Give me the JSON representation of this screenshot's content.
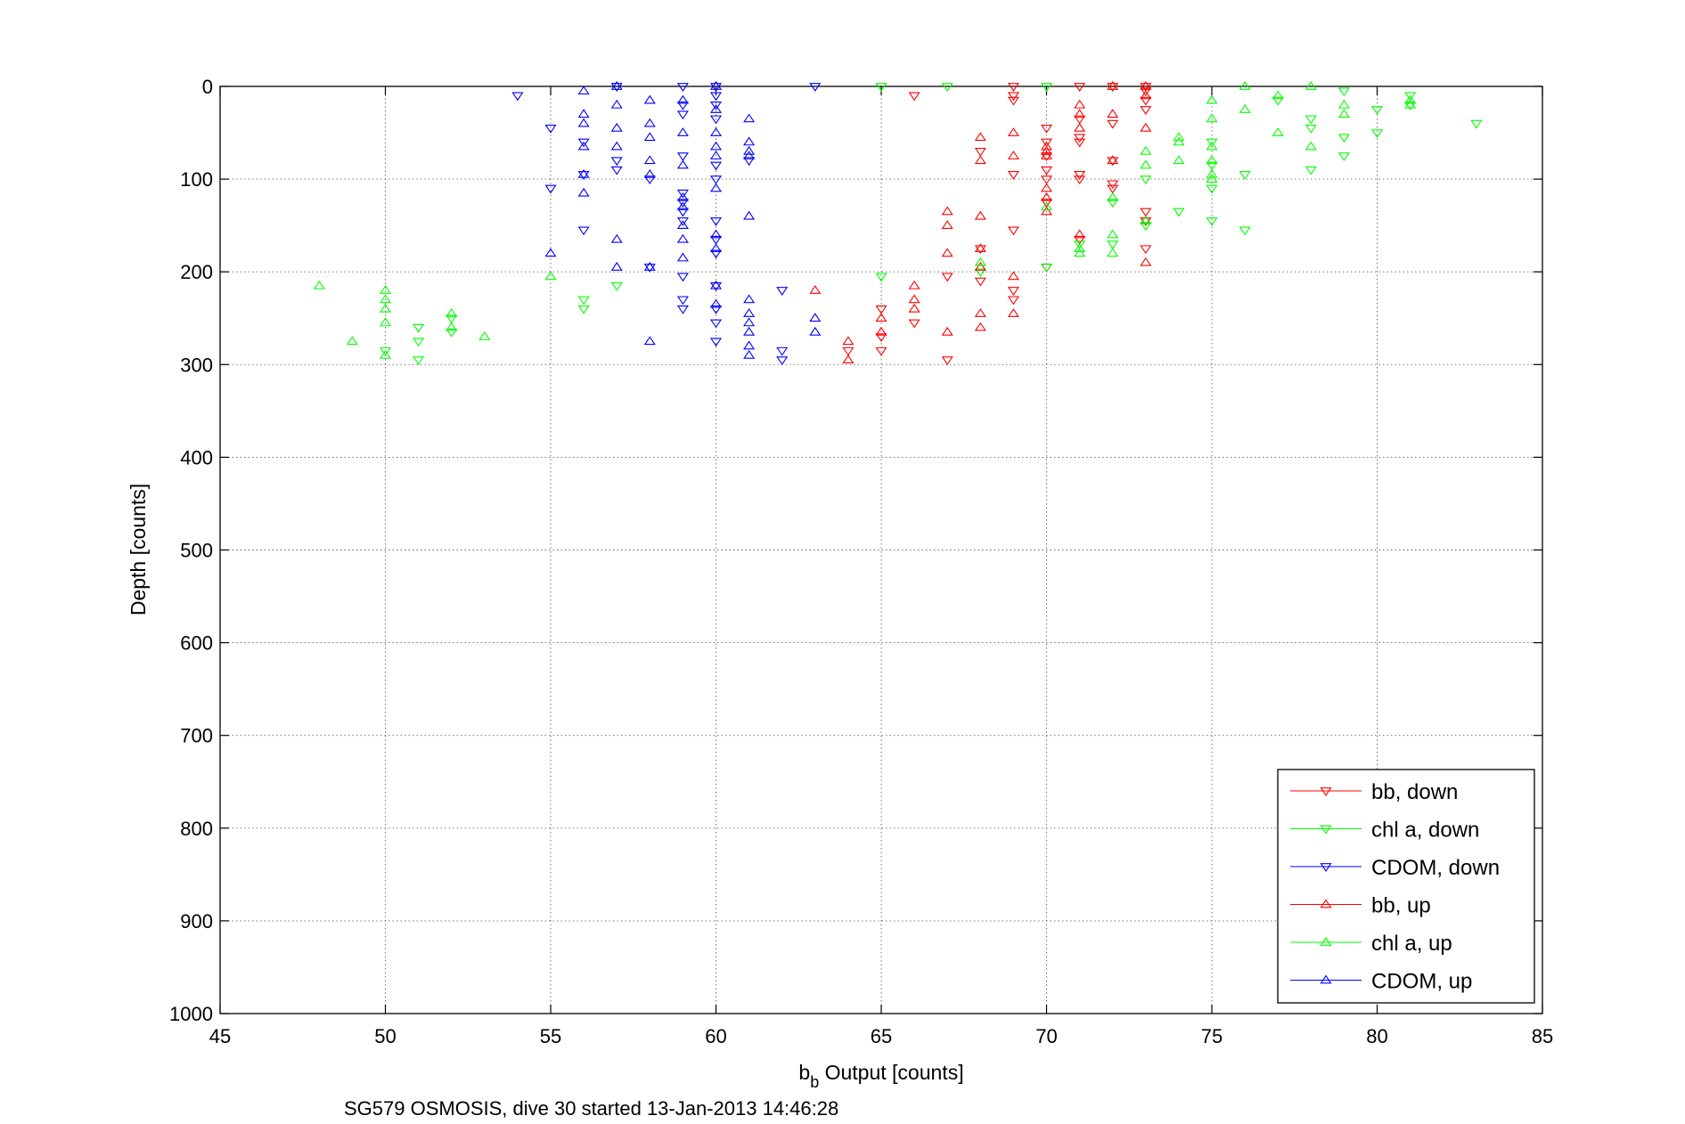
{
  "chart_data": {
    "type": "scatter",
    "xlabel_main": "b",
    "xlabel_sub": "b",
    "xlabel_rest": " Output [counts]",
    "ylabel": "Depth [counts]",
    "caption": "SG579 OSMOSIS, dive 30 started 13-Jan-2013 14:46:28",
    "xlim": [
      45,
      85
    ],
    "ylim": [
      0,
      1000
    ],
    "y_reversed": true,
    "grid": true,
    "legend_position": "bottom-right",
    "xticks": [
      45,
      50,
      55,
      60,
      65,
      70,
      75,
      80,
      85
    ],
    "yticks": [
      0,
      100,
      200,
      300,
      400,
      500,
      600,
      700,
      800,
      900,
      1000
    ],
    "series": [
      {
        "name": "bb, down",
        "color": "#ff0000",
        "marker": "triangle-down",
        "points": [
          [
            66,
            10
          ],
          [
            69,
            0
          ],
          [
            69,
            10
          ],
          [
            69,
            15
          ],
          [
            70,
            45
          ],
          [
            70,
            60
          ],
          [
            70,
            75
          ],
          [
            70,
            90
          ],
          [
            70,
            100
          ],
          [
            70,
            125
          ],
          [
            70,
            195
          ],
          [
            71,
            0
          ],
          [
            71,
            35
          ],
          [
            71,
            55
          ],
          [
            71,
            60
          ],
          [
            71,
            95
          ],
          [
            71,
            100
          ],
          [
            71,
            165
          ],
          [
            72,
            0
          ],
          [
            72,
            40
          ],
          [
            72,
            80
          ],
          [
            72,
            105
          ],
          [
            72,
            110
          ],
          [
            73,
            0
          ],
          [
            73,
            5
          ],
          [
            73,
            15
          ],
          [
            73,
            25
          ],
          [
            73,
            135
          ],
          [
            73,
            145
          ],
          [
            73,
            175
          ],
          [
            69,
            155
          ],
          [
            69,
            220
          ],
          [
            69,
            230
          ],
          [
            68,
            175
          ],
          [
            68,
            210
          ],
          [
            68,
            70
          ],
          [
            67,
            205
          ],
          [
            67,
            295
          ],
          [
            66,
            255
          ],
          [
            65,
            240
          ],
          [
            65,
            270
          ],
          [
            65,
            285
          ],
          [
            64,
            285
          ],
          [
            69,
            95
          ]
        ]
      },
      {
        "name": "chl a, down",
        "color": "#00ff00",
        "marker": "triangle-down",
        "points": [
          [
            50,
            285
          ],
          [
            51,
            260
          ],
          [
            51,
            275
          ],
          [
            51,
            295
          ],
          [
            52,
            250
          ],
          [
            52,
            265
          ],
          [
            56,
            230
          ],
          [
            56,
            240
          ],
          [
            57,
            215
          ],
          [
            65,
            0
          ],
          [
            65,
            205
          ],
          [
            67,
            0
          ],
          [
            68,
            200
          ],
          [
            70,
            0
          ],
          [
            70,
            195
          ],
          [
            72,
            125
          ],
          [
            73,
            100
          ],
          [
            73,
            150
          ],
          [
            74,
            135
          ],
          [
            75,
            60
          ],
          [
            75,
            85
          ],
          [
            75,
            110
          ],
          [
            75,
            145
          ],
          [
            76,
            95
          ],
          [
            76,
            155
          ],
          [
            77,
            15
          ],
          [
            78,
            35
          ],
          [
            78,
            45
          ],
          [
            78,
            90
          ],
          [
            79,
            5
          ],
          [
            79,
            55
          ],
          [
            79,
            75
          ],
          [
            80,
            50
          ],
          [
            80,
            25
          ],
          [
            81,
            10
          ],
          [
            81,
            20
          ],
          [
            83,
            40
          ],
          [
            71,
            170
          ],
          [
            72,
            170
          ]
        ]
      },
      {
        "name": "CDOM, down",
        "color": "#0000ff",
        "marker": "triangle-down",
        "points": [
          [
            54,
            10
          ],
          [
            55,
            45
          ],
          [
            55,
            110
          ],
          [
            56,
            60
          ],
          [
            56,
            95
          ],
          [
            56,
            155
          ],
          [
            57,
            0
          ],
          [
            57,
            80
          ],
          [
            57,
            90
          ],
          [
            58,
            100
          ],
          [
            58,
            195
          ],
          [
            59,
            0
          ],
          [
            59,
            20
          ],
          [
            59,
            30
          ],
          [
            59,
            75
          ],
          [
            59,
            115
          ],
          [
            59,
            125
          ],
          [
            59,
            135
          ],
          [
            59,
            145
          ],
          [
            59,
            205
          ],
          [
            59,
            230
          ],
          [
            59,
            240
          ],
          [
            60,
            0
          ],
          [
            60,
            10
          ],
          [
            60,
            20
          ],
          [
            60,
            35
          ],
          [
            60,
            85
          ],
          [
            60,
            100
          ],
          [
            60,
            145
          ],
          [
            60,
            165
          ],
          [
            60,
            180
          ],
          [
            60,
            215
          ],
          [
            60,
            240
          ],
          [
            60,
            255
          ],
          [
            60,
            275
          ],
          [
            61,
            80
          ],
          [
            62,
            220
          ],
          [
            62,
            285
          ],
          [
            62,
            295
          ],
          [
            63,
            0
          ]
        ]
      },
      {
        "name": "bb, up",
        "color": "#ff0000",
        "marker": "triangle-up",
        "points": [
          [
            63,
            220
          ],
          [
            64,
            275
          ],
          [
            64,
            295
          ],
          [
            65,
            250
          ],
          [
            65,
            265
          ],
          [
            66,
            215
          ],
          [
            66,
            230
          ],
          [
            66,
            240
          ],
          [
            67,
            135
          ],
          [
            67,
            150
          ],
          [
            67,
            180
          ],
          [
            67,
            265
          ],
          [
            68,
            55
          ],
          [
            68,
            80
          ],
          [
            68,
            140
          ],
          [
            68,
            175
          ],
          [
            68,
            195
          ],
          [
            68,
            245
          ],
          [
            68,
            260
          ],
          [
            69,
            50
          ],
          [
            69,
            75
          ],
          [
            69,
            205
          ],
          [
            69,
            245
          ],
          [
            70,
            65
          ],
          [
            70,
            70
          ],
          [
            70,
            75
          ],
          [
            70,
            110
          ],
          [
            70,
            120
          ],
          [
            70,
            135
          ],
          [
            71,
            20
          ],
          [
            71,
            30
          ],
          [
            71,
            45
          ],
          [
            71,
            160
          ],
          [
            72,
            0
          ],
          [
            72,
            30
          ],
          [
            72,
            80
          ],
          [
            73,
            0
          ],
          [
            73,
            10
          ],
          [
            73,
            45
          ],
          [
            73,
            145
          ],
          [
            73,
            190
          ]
        ]
      },
      {
        "name": "chl a, up",
        "color": "#00ff00",
        "marker": "triangle-up",
        "points": [
          [
            48,
            215
          ],
          [
            49,
            275
          ],
          [
            50,
            220
          ],
          [
            50,
            230
          ],
          [
            50,
            240
          ],
          [
            50,
            255
          ],
          [
            50,
            290
          ],
          [
            52,
            245
          ],
          [
            52,
            260
          ],
          [
            53,
            270
          ],
          [
            55,
            205
          ],
          [
            68,
            190
          ],
          [
            70,
            130
          ],
          [
            71,
            175
          ],
          [
            71,
            180
          ],
          [
            72,
            120
          ],
          [
            72,
            160
          ],
          [
            72,
            180
          ],
          [
            73,
            70
          ],
          [
            73,
            85
          ],
          [
            73,
            145
          ],
          [
            74,
            55
          ],
          [
            74,
            60
          ],
          [
            74,
            80
          ],
          [
            75,
            15
          ],
          [
            75,
            35
          ],
          [
            75,
            65
          ],
          [
            75,
            80
          ],
          [
            75,
            95
          ],
          [
            75,
            100
          ],
          [
            76,
            0
          ],
          [
            76,
            25
          ],
          [
            77,
            10
          ],
          [
            77,
            50
          ],
          [
            78,
            0
          ],
          [
            78,
            65
          ],
          [
            79,
            20
          ],
          [
            79,
            30
          ],
          [
            81,
            15
          ],
          [
            81,
            20
          ]
        ]
      },
      {
        "name": "CDOM, up",
        "color": "#0000ff",
        "marker": "triangle-up",
        "points": [
          [
            55,
            180
          ],
          [
            56,
            5
          ],
          [
            56,
            30
          ],
          [
            56,
            40
          ],
          [
            56,
            65
          ],
          [
            56,
            95
          ],
          [
            56,
            115
          ],
          [
            57,
            0
          ],
          [
            57,
            20
          ],
          [
            57,
            45
          ],
          [
            57,
            65
          ],
          [
            57,
            165
          ],
          [
            57,
            195
          ],
          [
            58,
            15
          ],
          [
            58,
            40
          ],
          [
            58,
            55
          ],
          [
            58,
            80
          ],
          [
            58,
            95
          ],
          [
            58,
            195
          ],
          [
            58,
            275
          ],
          [
            59,
            15
          ],
          [
            59,
            50
          ],
          [
            59,
            85
          ],
          [
            59,
            120
          ],
          [
            59,
            130
          ],
          [
            59,
            150
          ],
          [
            59,
            165
          ],
          [
            59,
            185
          ],
          [
            60,
            0
          ],
          [
            60,
            25
          ],
          [
            60,
            50
          ],
          [
            60,
            65
          ],
          [
            60,
            75
          ],
          [
            60,
            110
          ],
          [
            60,
            160
          ],
          [
            60,
            175
          ],
          [
            60,
            215
          ],
          [
            60,
            235
          ],
          [
            61,
            35
          ],
          [
            61,
            60
          ],
          [
            61,
            70
          ],
          [
            61,
            75
          ],
          [
            61,
            140
          ],
          [
            61,
            230
          ],
          [
            61,
            245
          ],
          [
            61,
            255
          ],
          [
            61,
            265
          ],
          [
            61,
            280
          ],
          [
            61,
            290
          ],
          [
            63,
            250
          ],
          [
            63,
            265
          ]
        ]
      }
    ]
  }
}
